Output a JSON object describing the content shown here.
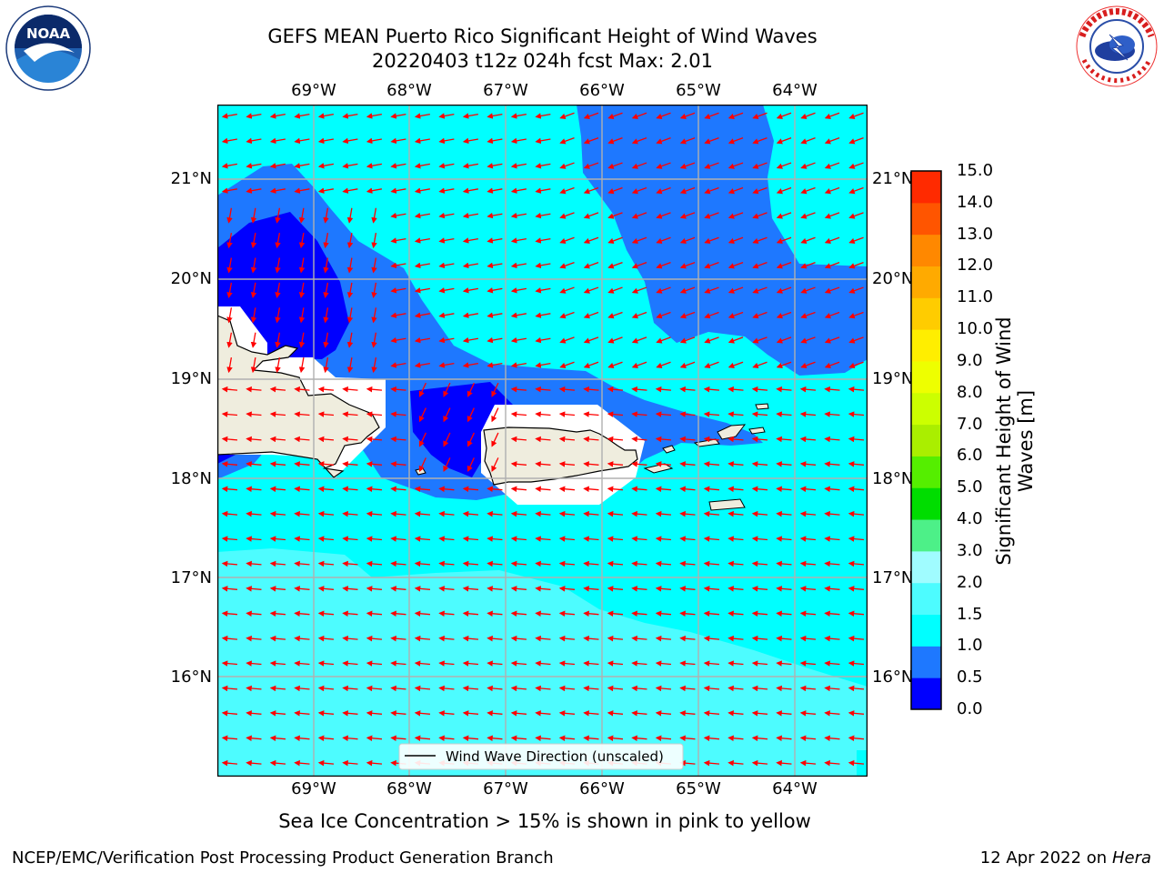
{
  "title": {
    "line1": "GEFS MEAN Puerto Rico Significant Height of Wind Waves",
    "line2": "20220403 t12z 024h fcst   Max: 2.01"
  },
  "logos": {
    "left": {
      "name": "noaa-logo",
      "text": "NOAA",
      "ring_text": "NATIONAL OCEANIC AND ATMOSPHERIC ADMINISTRATION · U.S. DEPARTMENT OF COMMERCE"
    },
    "right": {
      "name": "nws-logo",
      "ring_text": "NATIONAL WEATHER SERVICE"
    }
  },
  "map": {
    "lon_ticks": [
      "69°W",
      "68°W",
      "67°W",
      "66°W",
      "65°W",
      "64°W"
    ],
    "lat_ticks": [
      "21°N",
      "20°N",
      "19°N",
      "18°N",
      "17°N",
      "16°N"
    ],
    "legend_label": "Wind Wave Direction (unscaled)",
    "colors": {
      "level_0_0.5": "#0000ff",
      "level_0.5_1.0": "#1e78ff",
      "level_1.0_1.5": "#00ffff",
      "level_1.5_2.0": "#4dfcff",
      "land": "#efedde",
      "arrows": "#ff0000",
      "grid": "#b0b0b0"
    }
  },
  "colorbar": {
    "label": "Significant Height of Wind Waves [m]",
    "tick_labels": [
      "0.0",
      "0.5",
      "1.0",
      "1.5",
      "2.0",
      "3.0",
      "4.0",
      "5.0",
      "6.0",
      "7.0",
      "8.0",
      "9.0",
      "10.0",
      "11.0",
      "12.0",
      "13.0",
      "14.0",
      "15.0"
    ],
    "colors": [
      "#0000ff",
      "#1e78ff",
      "#00ffff",
      "#4dfcff",
      "#a0fcff",
      "#4df088",
      "#00dd00",
      "#55ee00",
      "#aaee00",
      "#ccff00",
      "#eeff00",
      "#ffee00",
      "#ffcc00",
      "#ffaa00",
      "#ff8800",
      "#ff5500",
      "#ff2a00"
    ]
  },
  "subtitle": "Sea Ice Concentration > 15% is shown in pink to yellow",
  "footer": {
    "left": "NCEP/EMC/Verification Post Processing Product Generation Branch",
    "right_date": "12 Apr 2022 on ",
    "right_host": "Hera"
  }
}
